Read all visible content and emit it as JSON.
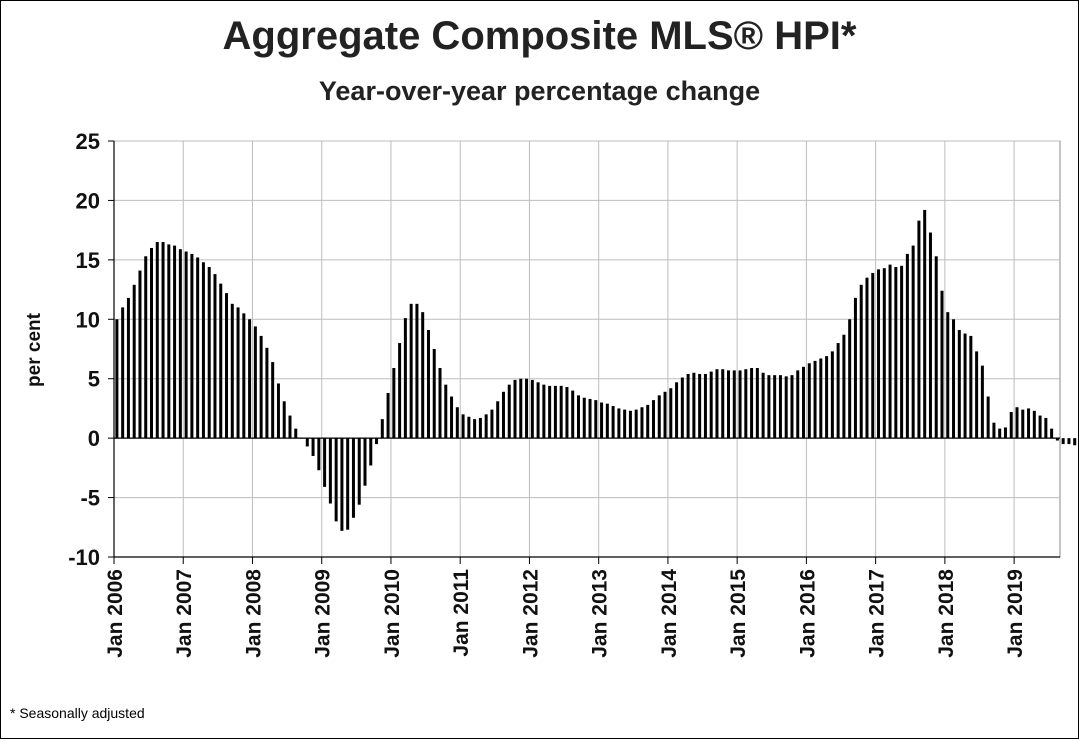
{
  "chart_data": {
    "type": "bar",
    "title": "Aggregate Composite MLS® HPI*",
    "subtitle": "Year-over-year percentage change",
    "ylabel": "per cent",
    "xlabel": "",
    "ylim": [
      -10,
      25
    ],
    "yticks": [
      -10,
      -5,
      0,
      5,
      10,
      15,
      20,
      25
    ],
    "xtick_labels": [
      "Jan 2006",
      "Jan 2007",
      "Jan 2008",
      "Jan 2009",
      "Jan 2010",
      "Jan 2011",
      "Jan 2012",
      "Jan 2013",
      "Jan 2014",
      "Jan 2015",
      "Jan 2016",
      "Jan 2017",
      "Jan 2018",
      "Jan 2019"
    ],
    "grid": true,
    "legend": "none",
    "bar_color": "#000000",
    "start": "2006-01",
    "end": "2019-08",
    "frequency": "monthly",
    "series": [
      {
        "values": [
          10.0,
          11.0,
          11.8,
          12.9,
          14.1,
          15.3,
          16.0,
          16.5,
          16.5,
          16.3,
          16.2,
          15.9,
          15.7,
          15.5,
          15.2,
          14.8,
          14.4,
          13.8,
          13.0,
          12.2,
          11.3,
          11.0,
          10.5,
          10.0,
          9.4,
          8.6,
          7.6,
          6.4,
          4.6,
          3.1,
          1.9,
          0.8,
          0.0,
          -0.7,
          -1.5,
          -2.7,
          -4.1,
          -5.5,
          -7.0,
          -7.8,
          -7.7,
          -6.7,
          -5.6,
          -4.0,
          -2.3,
          -0.5,
          1.6,
          3.8,
          5.9,
          8.0,
          10.1,
          11.3,
          11.3,
          10.6,
          9.1,
          7.5,
          5.9,
          4.5,
          3.5,
          2.6,
          2.0,
          1.8,
          1.6,
          1.7,
          2.0,
          2.4,
          3.1,
          3.9,
          4.5,
          4.9,
          5.0,
          5.0,
          4.9,
          4.7,
          4.5,
          4.4,
          4.4,
          4.4,
          4.3,
          4.0,
          3.6,
          3.4,
          3.3,
          3.2,
          3.0,
          2.9,
          2.7,
          2.5,
          2.4,
          2.3,
          2.4,
          2.6,
          2.8,
          3.2,
          3.6,
          3.9,
          4.2,
          4.7,
          5.1,
          5.4,
          5.5,
          5.4,
          5.4,
          5.6,
          5.8,
          5.8,
          5.7,
          5.7,
          5.7,
          5.8,
          5.9,
          5.9,
          5.5,
          5.3,
          5.3,
          5.3,
          5.2,
          5.3,
          5.7,
          6.0,
          6.3,
          6.5,
          6.7,
          6.9,
          7.3,
          8.0,
          8.7,
          10.0,
          11.8,
          12.9,
          13.5,
          13.9,
          14.2,
          14.3,
          14.6,
          14.4,
          14.5,
          15.5,
          16.2,
          18.3,
          19.2,
          17.3,
          15.3,
          12.4,
          10.6,
          10.0,
          9.1,
          8.8,
          8.6,
          7.3,
          6.1,
          3.5,
          1.3,
          0.8,
          0.9,
          2.2,
          2.6,
          2.4,
          2.5,
          2.3,
          1.9,
          1.7,
          0.8,
          -0.2,
          -0.5,
          -0.5,
          -0.6,
          -0.3,
          0.2,
          0.2
        ]
      }
    ]
  },
  "footnote": "* Seasonally adjusted"
}
